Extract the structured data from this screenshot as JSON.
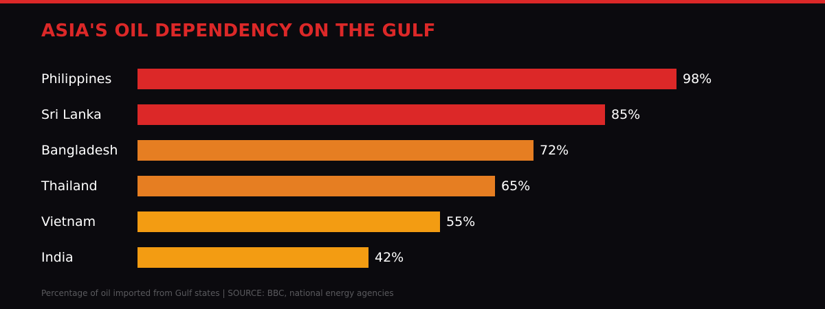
{
  "chart_data": {
    "type": "bar",
    "orientation": "horizontal",
    "title": "ASIA'S OIL DEPENDENCY ON THE GULF",
    "categories": [
      "Philippines",
      "Sri Lanka",
      "Bangladesh",
      "Thailand",
      "Vietnam",
      "India"
    ],
    "values": [
      98,
      85,
      72,
      65,
      55,
      42
    ],
    "value_labels": [
      "98%",
      "85%",
      "72%",
      "65%",
      "55%",
      "42%"
    ],
    "colors": [
      "#dc2828",
      "#dc2828",
      "#e67e22",
      "#e67e22",
      "#f39c12",
      "#f39c12"
    ],
    "xlim": [
      0,
      100
    ],
    "grid": false,
    "footnote": "Percentage of oil imported from Gulf states | SOURCE: BBC, national energy agencies"
  },
  "accent_color": "#dc2828"
}
